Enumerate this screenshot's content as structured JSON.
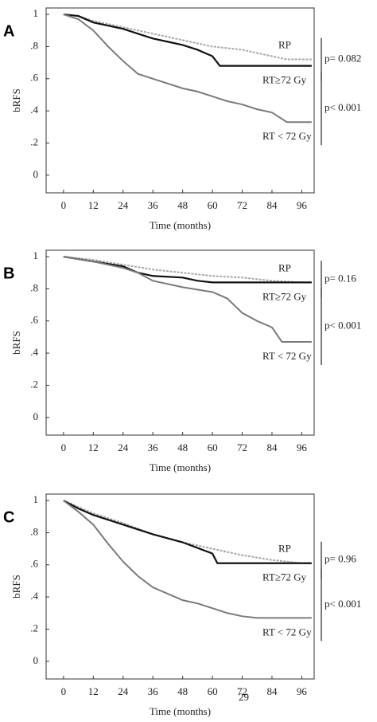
{
  "chart_data": [
    {
      "type": "line",
      "panel": "A",
      "ylabel": "bRFS",
      "xlabel": "Time (months)",
      "xlim": [
        -7,
        101
      ],
      "ylim": [
        -0.11,
        1.04
      ],
      "xticks": [
        0,
        12,
        24,
        36,
        48,
        60,
        72,
        84,
        96
      ],
      "yticks": [
        0,
        {
          "value": 0.2,
          "label": ".2"
        },
        {
          "value": 0.4,
          "label": ".4"
        },
        {
          "value": 0.6,
          "label": ".6"
        },
        {
          "value": 0.8,
          "label": ".8"
        },
        1
      ],
      "series": [
        {
          "name": "RP",
          "color": "#a8a8a8",
          "x": [
            0,
            6,
            12,
            18,
            24,
            30,
            36,
            42,
            48,
            54,
            60,
            66,
            72,
            78,
            84,
            90,
            96,
            100
          ],
          "values": [
            1,
            0.99,
            0.96,
            0.94,
            0.92,
            0.9,
            0.88,
            0.86,
            0.84,
            0.82,
            0.8,
            0.79,
            0.78,
            0.76,
            0.74,
            0.72,
            0.72,
            0.72
          ]
        },
        {
          "name": "RT≥72 Gy",
          "color": "#111111",
          "x": [
            0,
            6,
            12,
            18,
            24,
            30,
            36,
            42,
            48,
            54,
            60,
            63,
            100
          ],
          "values": [
            1,
            0.99,
            0.95,
            0.93,
            0.91,
            0.88,
            0.85,
            0.83,
            0.81,
            0.78,
            0.74,
            0.68,
            0.68
          ]
        },
        {
          "name": "RT < 72 Gy",
          "color": "#7a7a7a",
          "x": [
            0,
            6,
            12,
            18,
            24,
            30,
            36,
            42,
            48,
            54,
            60,
            66,
            72,
            78,
            84,
            90,
            100
          ],
          "values": [
            1,
            0.97,
            0.9,
            0.8,
            0.71,
            0.63,
            0.6,
            0.57,
            0.54,
            0.52,
            0.49,
            0.46,
            0.44,
            0.41,
            0.39,
            0.33,
            0.33
          ]
        }
      ],
      "pvalues": [
        "p= 0.082",
        "p< 0.001"
      ]
    },
    {
      "type": "line",
      "panel": "B",
      "ylabel": "bRFS",
      "xlabel": "Time (months)",
      "xlim": [
        -7,
        101
      ],
      "ylim": [
        -0.11,
        1.04
      ],
      "xticks": [
        0,
        12,
        24,
        36,
        48,
        60,
        72,
        84,
        96
      ],
      "yticks": [
        0,
        {
          "value": 0.2,
          "label": ".2"
        },
        {
          "value": 0.4,
          "label": ".4"
        },
        {
          "value": 0.6,
          "label": ".6"
        },
        {
          "value": 0.8,
          "label": ".8"
        },
        1
      ],
      "series": [
        {
          "name": "RP",
          "color": "#a8a8a8",
          "x": [
            0,
            12,
            24,
            36,
            48,
            60,
            72,
            84,
            96,
            100
          ],
          "values": [
            1,
            0.98,
            0.95,
            0.92,
            0.9,
            0.88,
            0.87,
            0.85,
            0.84,
            0.84
          ]
        },
        {
          "name": "RT≥72 Gy",
          "color": "#111111",
          "x": [
            0,
            12,
            24,
            30,
            36,
            48,
            54,
            60,
            100
          ],
          "values": [
            1,
            0.97,
            0.94,
            0.9,
            0.88,
            0.87,
            0.85,
            0.84,
            0.84
          ]
        },
        {
          "name": "RT < 72 Gy",
          "color": "#7a7a7a",
          "x": [
            0,
            12,
            24,
            30,
            36,
            48,
            60,
            66,
            72,
            78,
            84,
            88,
            100
          ],
          "values": [
            1,
            0.97,
            0.93,
            0.9,
            0.85,
            0.81,
            0.78,
            0.74,
            0.65,
            0.6,
            0.56,
            0.47,
            0.47
          ]
        }
      ],
      "pvalues": [
        "p= 0.16",
        "p< 0.001"
      ]
    },
    {
      "type": "line",
      "panel": "C",
      "ylabel": "bRFS",
      "xlabel": "Time (months)",
      "xlim": [
        -7,
        101
      ],
      "ylim": [
        -0.11,
        1.04
      ],
      "xticks": [
        0,
        12,
        24,
        36,
        48,
        60,
        72,
        84,
        96
      ],
      "yticks": [
        0,
        {
          "value": 0.2,
          "label": ".2"
        },
        {
          "value": 0.4,
          "label": ".4"
        },
        {
          "value": 0.6,
          "label": ".6"
        },
        {
          "value": 0.8,
          "label": ".8"
        },
        1
      ],
      "series": [
        {
          "name": "RP",
          "color": "#a8a8a8",
          "x": [
            0,
            12,
            24,
            36,
            48,
            60,
            72,
            84,
            96,
            100
          ],
          "values": [
            1,
            0.92,
            0.86,
            0.79,
            0.74,
            0.7,
            0.66,
            0.63,
            0.61,
            0.61
          ]
        },
        {
          "name": "RT≥72 Gy",
          "color": "#111111",
          "x": [
            0,
            6,
            12,
            24,
            36,
            48,
            60,
            62,
            100
          ],
          "values": [
            1,
            0.95,
            0.91,
            0.85,
            0.79,
            0.74,
            0.67,
            0.61,
            0.61
          ]
        },
        {
          "name": "RT < 72 Gy",
          "color": "#7a7a7a",
          "x": [
            0,
            6,
            12,
            18,
            24,
            30,
            36,
            42,
            48,
            54,
            60,
            66,
            72,
            78,
            100
          ],
          "values": [
            1,
            0.93,
            0.85,
            0.73,
            0.62,
            0.53,
            0.46,
            0.42,
            0.38,
            0.36,
            0.33,
            0.3,
            0.28,
            0.27,
            0.27
          ]
        }
      ],
      "pvalues": [
        "p= 0.96",
        "p< 0.001"
      ]
    }
  ],
  "page_number": "29"
}
